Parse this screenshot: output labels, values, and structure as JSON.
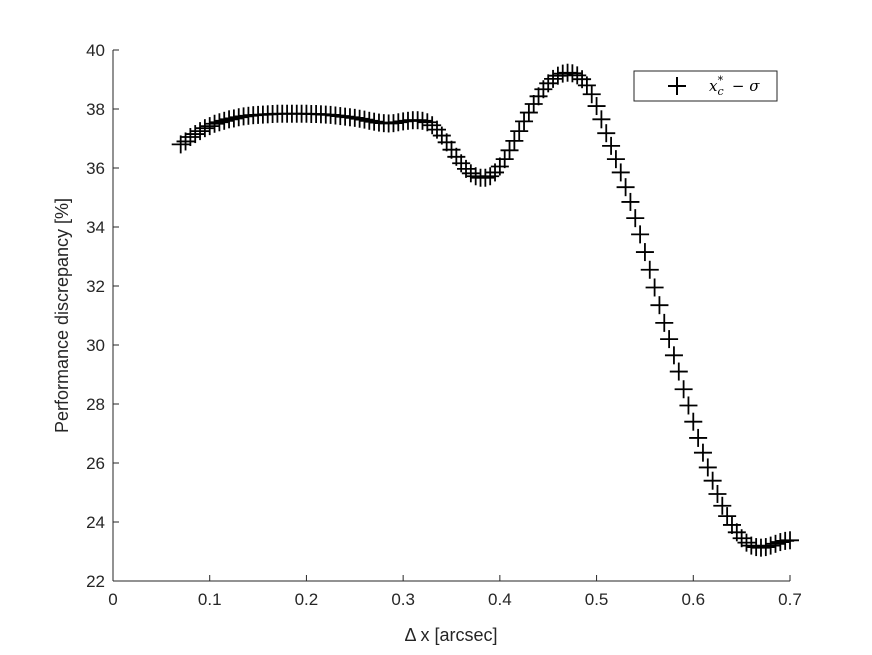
{
  "chart_data": {
    "type": "scatter",
    "xlabel": "Δ x [arcsec]",
    "ylabel": "Performance discrepancy [%]",
    "xlim": [
      0,
      0.7
    ],
    "ylim": [
      22,
      40
    ],
    "xticks": [
      0,
      0.1,
      0.2,
      0.3,
      0.4,
      0.5,
      0.6,
      0.7
    ],
    "xtick_labels": [
      "0",
      "0.1",
      "0.2",
      "0.3",
      "0.4",
      "0.5",
      "0.6",
      "0.7"
    ],
    "yticks": [
      22,
      24,
      26,
      28,
      30,
      32,
      34,
      36,
      38,
      40
    ],
    "ytick_labels": [
      "22",
      "24",
      "26",
      "28",
      "30",
      "32",
      "34",
      "36",
      "38",
      "40"
    ],
    "grid": false,
    "legend_position": "top-right",
    "marker": "+",
    "color": "#000000",
    "series": [
      {
        "name": "x_c^* − σ",
        "points": [
          [
            0.07,
            36.8
          ],
          [
            0.075,
            36.9
          ],
          [
            0.08,
            37.05
          ],
          [
            0.085,
            37.15
          ],
          [
            0.09,
            37.25
          ],
          [
            0.095,
            37.35
          ],
          [
            0.1,
            37.42
          ],
          [
            0.105,
            37.5
          ],
          [
            0.11,
            37.55
          ],
          [
            0.115,
            37.6
          ],
          [
            0.12,
            37.65
          ],
          [
            0.125,
            37.68
          ],
          [
            0.13,
            37.72
          ],
          [
            0.135,
            37.75
          ],
          [
            0.14,
            37.77
          ],
          [
            0.145,
            37.79
          ],
          [
            0.15,
            37.8
          ],
          [
            0.155,
            37.81
          ],
          [
            0.16,
            37.82
          ],
          [
            0.165,
            37.83
          ],
          [
            0.17,
            37.84
          ],
          [
            0.175,
            37.84
          ],
          [
            0.18,
            37.84
          ],
          [
            0.185,
            37.84
          ],
          [
            0.19,
            37.84
          ],
          [
            0.195,
            37.84
          ],
          [
            0.2,
            37.84
          ],
          [
            0.205,
            37.83
          ],
          [
            0.21,
            37.83
          ],
          [
            0.215,
            37.82
          ],
          [
            0.22,
            37.81
          ],
          [
            0.225,
            37.8
          ],
          [
            0.23,
            37.78
          ],
          [
            0.235,
            37.76
          ],
          [
            0.24,
            37.74
          ],
          [
            0.245,
            37.72
          ],
          [
            0.25,
            37.7
          ],
          [
            0.255,
            37.67
          ],
          [
            0.26,
            37.64
          ],
          [
            0.265,
            37.6
          ],
          [
            0.27,
            37.57
          ],
          [
            0.275,
            37.54
          ],
          [
            0.28,
            37.52
          ],
          [
            0.285,
            37.51
          ],
          [
            0.29,
            37.52
          ],
          [
            0.295,
            37.55
          ],
          [
            0.3,
            37.58
          ],
          [
            0.305,
            37.6
          ],
          [
            0.31,
            37.62
          ],
          [
            0.315,
            37.62
          ],
          [
            0.32,
            37.6
          ],
          [
            0.325,
            37.55
          ],
          [
            0.33,
            37.45
          ],
          [
            0.335,
            37.3
          ],
          [
            0.34,
            37.1
          ],
          [
            0.345,
            36.87
          ],
          [
            0.35,
            36.62
          ],
          [
            0.355,
            36.38
          ],
          [
            0.36,
            36.16
          ],
          [
            0.365,
            35.97
          ],
          [
            0.37,
            35.82
          ],
          [
            0.375,
            35.72
          ],
          [
            0.38,
            35.67
          ],
          [
            0.385,
            35.67
          ],
          [
            0.39,
            35.72
          ],
          [
            0.395,
            35.85
          ],
          [
            0.4,
            36.05
          ],
          [
            0.405,
            36.3
          ],
          [
            0.41,
            36.6
          ],
          [
            0.415,
            36.92
          ],
          [
            0.42,
            37.25
          ],
          [
            0.425,
            37.58
          ],
          [
            0.43,
            37.88
          ],
          [
            0.435,
            38.17
          ],
          [
            0.44,
            38.43
          ],
          [
            0.445,
            38.67
          ],
          [
            0.45,
            38.87
          ],
          [
            0.455,
            39.02
          ],
          [
            0.46,
            39.13
          ],
          [
            0.465,
            39.2
          ],
          [
            0.47,
            39.23
          ],
          [
            0.475,
            39.21
          ],
          [
            0.48,
            39.14
          ],
          [
            0.485,
            39.01
          ],
          [
            0.49,
            38.8
          ],
          [
            0.495,
            38.5
          ],
          [
            0.5,
            38.1
          ],
          [
            0.505,
            37.65
          ],
          [
            0.51,
            37.18
          ],
          [
            0.515,
            36.75
          ],
          [
            0.52,
            36.3
          ],
          [
            0.525,
            35.85
          ],
          [
            0.53,
            35.35
          ],
          [
            0.535,
            34.85
          ],
          [
            0.54,
            34.3
          ],
          [
            0.545,
            33.75
          ],
          [
            0.55,
            33.15
          ],
          [
            0.555,
            32.55
          ],
          [
            0.56,
            31.95
          ],
          [
            0.565,
            31.35
          ],
          [
            0.57,
            30.75
          ],
          [
            0.575,
            30.2
          ],
          [
            0.58,
            29.65
          ],
          [
            0.585,
            29.1
          ],
          [
            0.59,
            28.5
          ],
          [
            0.595,
            27.95
          ],
          [
            0.6,
            27.4
          ],
          [
            0.605,
            26.85
          ],
          [
            0.61,
            26.35
          ],
          [
            0.615,
            25.85
          ],
          [
            0.62,
            25.4
          ],
          [
            0.625,
            24.95
          ],
          [
            0.63,
            24.55
          ],
          [
            0.635,
            24.2
          ],
          [
            0.64,
            23.9
          ],
          [
            0.645,
            23.65
          ],
          [
            0.65,
            23.45
          ],
          [
            0.655,
            23.3
          ],
          [
            0.66,
            23.2
          ],
          [
            0.665,
            23.15
          ],
          [
            0.67,
            23.13
          ],
          [
            0.675,
            23.15
          ],
          [
            0.68,
            23.2
          ],
          [
            0.685,
            23.26
          ],
          [
            0.69,
            23.32
          ],
          [
            0.695,
            23.36
          ],
          [
            0.7,
            23.38
          ]
        ]
      }
    ]
  }
}
